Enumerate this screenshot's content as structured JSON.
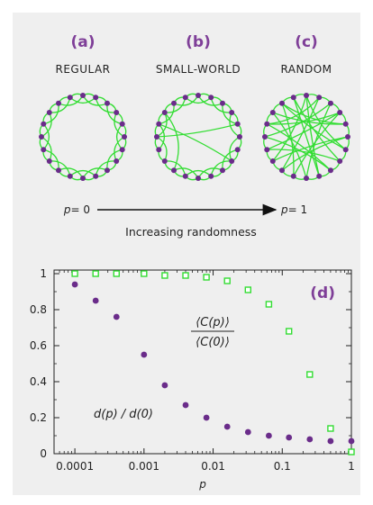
{
  "colors": {
    "accent": "#7f3f98",
    "edge": "#33dd33",
    "node": "#6a2c8a",
    "marker_green": "#33dd33"
  },
  "networks": [
    {
      "letter": "(a)",
      "title": "REGULAR"
    },
    {
      "letter": "(b)",
      "title": "SMALL-WORLD"
    },
    {
      "letter": "(c)",
      "title": "RANDOM"
    }
  ],
  "arrow": {
    "left_p": "p",
    "left_eq": "= 0",
    "right_p": "p",
    "right_eq": "= 1",
    "caption": "Increasing randomness"
  },
  "chart_data": {
    "type": "scatter",
    "panel_label": "(d)",
    "xlabel": "p",
    "xscale": "log",
    "xlim": [
      5e-05,
      1
    ],
    "ylim": [
      0,
      1.02
    ],
    "xticks": [
      {
        "v": 0.0001,
        "label": "0.0001"
      },
      {
        "v": 0.001,
        "label": "0.001"
      },
      {
        "v": 0.01,
        "label": "0.01"
      },
      {
        "v": 0.1,
        "label": "0.1"
      },
      {
        "v": 1,
        "label": "1"
      }
    ],
    "yticks": [
      {
        "v": 0,
        "label": "0"
      },
      {
        "v": 0.2,
        "label": "0.2"
      },
      {
        "v": 0.4,
        "label": "0.4"
      },
      {
        "v": 0.6,
        "label": "0.6"
      },
      {
        "v": 0.8,
        "label": "0.8"
      },
      {
        "v": 1,
        "label": "1"
      }
    ],
    "series": [
      {
        "label_num": "⟨C(p)⟩",
        "label_den": "⟨C(0)⟩",
        "marker": "square",
        "x": [
          0.0001,
          0.0002,
          0.0004,
          0.001,
          0.002,
          0.004,
          0.008,
          0.016,
          0.032,
          0.064,
          0.125,
          0.25,
          0.5,
          1
        ],
        "y": [
          1,
          1,
          1,
          1,
          0.99,
          0.99,
          0.98,
          0.96,
          0.91,
          0.83,
          0.68,
          0.44,
          0.14,
          0.01
        ]
      },
      {
        "label": "d(p) / d(0)",
        "marker": "circle",
        "x": [
          0.0001,
          0.0002,
          0.0004,
          0.001,
          0.002,
          0.004,
          0.008,
          0.016,
          0.032,
          0.064,
          0.125,
          0.25,
          0.5,
          1
        ],
        "y": [
          0.94,
          0.85,
          0.76,
          0.55,
          0.38,
          0.27,
          0.2,
          0.15,
          0.12,
          0.1,
          0.09,
          0.08,
          0.07,
          0.07
        ]
      }
    ]
  }
}
